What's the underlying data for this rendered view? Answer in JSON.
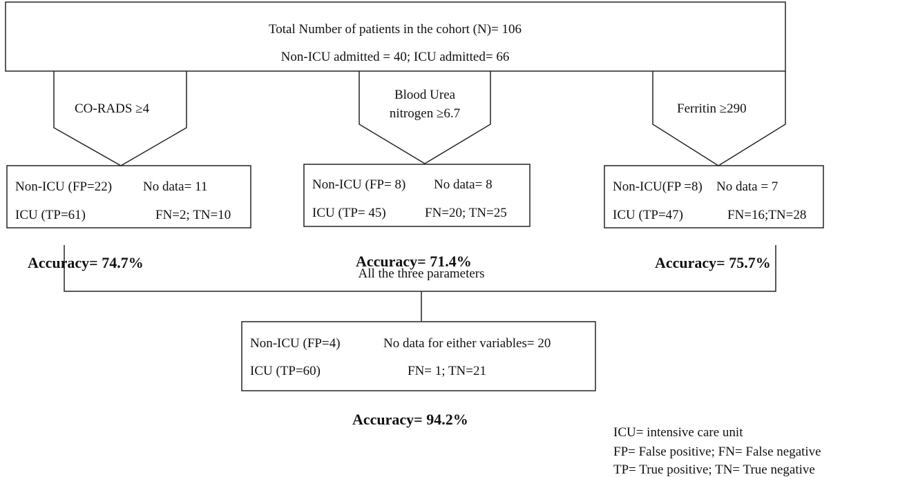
{
  "header": {
    "line1": "Total Number of patients in the cohort (N)= 106",
    "line2": "Non-ICU admitted = 40; ICU admitted= 66"
  },
  "criteria": [
    {
      "label": [
        "CO-RADS ≥4"
      ],
      "non_icu": "Non-ICU (FP=22)",
      "no_data": "No data= 11",
      "icu": "ICU (TP=61)",
      "fn_tn": "FN=2; TN=10",
      "accuracy": "Accuracy= 74.7%"
    },
    {
      "label": [
        "Blood Urea",
        "nitrogen ≥6.7"
      ],
      "non_icu": "Non-ICU (FP= 8)",
      "no_data": "No data= 8",
      "icu": "ICU (TP= 45)",
      "fn_tn": "FN=20; TN=25",
      "accuracy": "Accuracy= 71.4%"
    },
    {
      "label": [
        "Ferritin ≥290"
      ],
      "non_icu": "Non-ICU(FP =8)",
      "no_data": "No data = 7",
      "icu": "ICU (TP=47)",
      "fn_tn": "FN=16;TN=28",
      "accuracy": "Accuracy= 75.7%"
    }
  ],
  "combined": {
    "label": "All the three parameters",
    "non_icu": "Non-ICU (FP=4)",
    "no_data": "No data for either variables= 20",
    "icu": "ICU (TP=60)",
    "fn_tn": "FN= 1; TN=21",
    "accuracy": "Accuracy= 94.2%"
  },
  "legend": [
    "ICU= intensive care unit",
    "FP= False positive;  FN= False negative",
    "TP= True positive; TN= True negative"
  ]
}
